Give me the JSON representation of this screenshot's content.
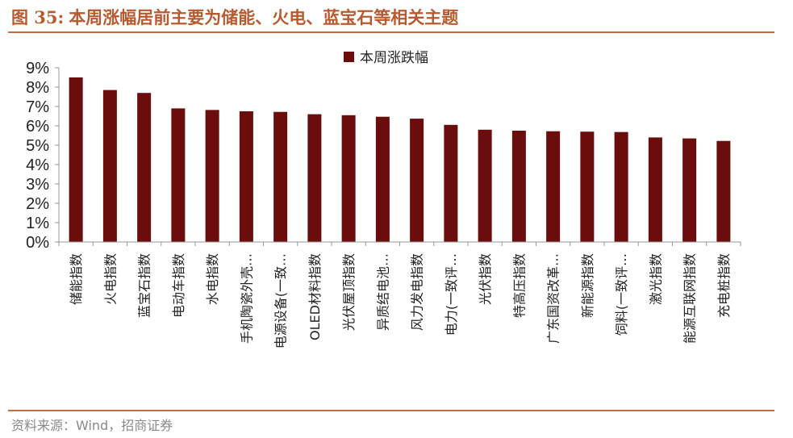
{
  "header": {
    "figure_label": "图 35:",
    "title": "本周涨幅居前主要为储能、火电、蓝宝石等相关主题"
  },
  "footer": {
    "source": "资料来源：Wind，招商证券"
  },
  "chart_data": {
    "type": "bar",
    "legend": {
      "entries": [
        "本周涨跌幅"
      ],
      "position": "top"
    },
    "categories": [
      "储能指数",
      "火电指数",
      "蓝宝石指数",
      "电动车指数",
      "水电指数",
      "手机陶瓷外壳…",
      "电源设备(一致…",
      "OLED材料指数",
      "光伏屋顶指数",
      "异质结电池…",
      "风力发电指数",
      "电力(一致评…",
      "光伏指数",
      "特高压指数",
      "广东国资改革…",
      "新能源指数",
      "饲料(一致评…",
      "激光指数",
      "能源互联网指数",
      "充电桩指数"
    ],
    "series": [
      {
        "name": "本周涨跌幅",
        "color": "#6b0d0d",
        "values": [
          8.5,
          7.85,
          7.7,
          6.9,
          6.82,
          6.75,
          6.72,
          6.6,
          6.55,
          6.47,
          6.37,
          6.05,
          5.8,
          5.75,
          5.72,
          5.7,
          5.68,
          5.4,
          5.35,
          5.22
        ]
      }
    ],
    "ylim": [
      0,
      9
    ],
    "yticks": [
      "0%",
      "1%",
      "2%",
      "3%",
      "4%",
      "5%",
      "6%",
      "7%",
      "8%",
      "9%"
    ],
    "grid": false
  }
}
